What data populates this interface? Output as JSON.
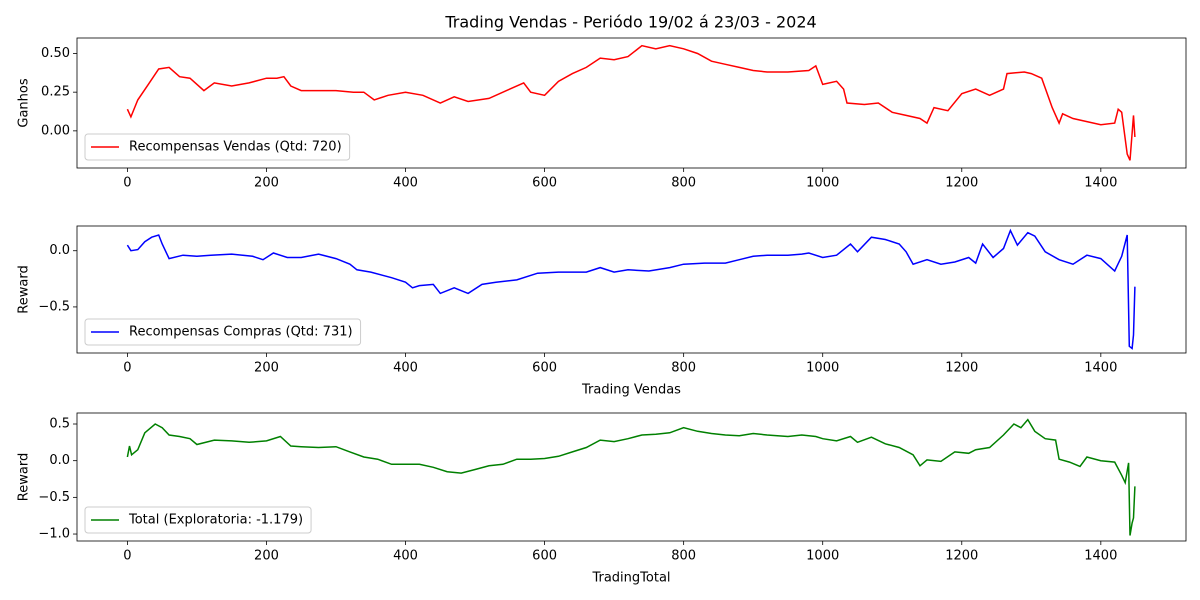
{
  "chart_data": [
    {
      "type": "line",
      "title": "Trading Vendas - Periódo 19/02 á 23/03 - 2024",
      "ylabel": "Ganhos",
      "legend": "lower left",
      "xlim": [
        -72.5,
        1522.5
      ],
      "ylim": [
        -0.24,
        0.6
      ],
      "xticks": [
        0,
        200,
        400,
        600,
        800,
        1000,
        1200,
        1400
      ],
      "yticks": [
        {
          "value": 0,
          "label": "0.00"
        },
        {
          "value": 0.25,
          "label": "0.25"
        },
        {
          "value": 0.5,
          "label": "0.50"
        }
      ],
      "x": [
        0,
        5,
        15,
        30,
        45,
        60,
        75,
        90,
        110,
        125,
        150,
        175,
        200,
        215,
        225,
        235,
        250,
        275,
        300,
        325,
        340,
        355,
        375,
        400,
        425,
        450,
        470,
        490,
        520,
        550,
        570,
        580,
        600,
        620,
        640,
        660,
        680,
        700,
        720,
        740,
        760,
        780,
        800,
        820,
        840,
        860,
        880,
        900,
        920,
        950,
        980,
        990,
        1000,
        1020,
        1030,
        1035,
        1060,
        1080,
        1100,
        1120,
        1140,
        1150,
        1160,
        1180,
        1200,
        1220,
        1240,
        1260,
        1265,
        1290,
        1300,
        1315,
        1330,
        1340,
        1345,
        1360,
        1380,
        1400,
        1420,
        1425,
        1430,
        1438,
        1442,
        1447,
        1449
      ],
      "series": [
        {
          "name": "Recompensas Vendas (Qtd: 720)",
          "color": "#ff0000",
          "values": [
            0.14,
            0.09,
            0.2,
            0.3,
            0.4,
            0.41,
            0.35,
            0.34,
            0.26,
            0.31,
            0.29,
            0.31,
            0.34,
            0.34,
            0.35,
            0.29,
            0.26,
            0.26,
            0.26,
            0.25,
            0.25,
            0.2,
            0.23,
            0.25,
            0.23,
            0.18,
            0.22,
            0.19,
            0.21,
            0.27,
            0.31,
            0.25,
            0.23,
            0.32,
            0.37,
            0.41,
            0.47,
            0.46,
            0.48,
            0.55,
            0.53,
            0.55,
            0.53,
            0.5,
            0.45,
            0.43,
            0.41,
            0.39,
            0.38,
            0.38,
            0.39,
            0.42,
            0.3,
            0.32,
            0.27,
            0.18,
            0.17,
            0.18,
            0.12,
            0.1,
            0.08,
            0.05,
            0.15,
            0.13,
            0.24,
            0.27,
            0.23,
            0.27,
            0.37,
            0.38,
            0.37,
            0.34,
            0.15,
            0.05,
            0.11,
            0.08,
            0.06,
            0.04,
            0.05,
            0.14,
            0.12,
            -0.15,
            -0.19,
            0.1,
            -0.04
          ]
        }
      ]
    },
    {
      "type": "line",
      "ylabel": "Reward",
      "xlabel": "Trading Vendas",
      "legend": "lower left",
      "xlim": [
        -72.5,
        1522.5
      ],
      "ylim": [
        -0.91,
        0.22
      ],
      "xticks": [
        0,
        200,
        400,
        600,
        800,
        1000,
        1200,
        1400
      ],
      "yticks": [
        {
          "value": -0.5,
          "label": "−0.5"
        },
        {
          "value": 0,
          "label": "0.0"
        }
      ],
      "x": [
        0,
        5,
        15,
        25,
        35,
        45,
        50,
        60,
        80,
        100,
        120,
        150,
        180,
        195,
        210,
        230,
        250,
        275,
        300,
        320,
        330,
        350,
        380,
        400,
        410,
        420,
        440,
        450,
        470,
        490,
        510,
        530,
        560,
        590,
        620,
        640,
        660,
        680,
        700,
        720,
        750,
        780,
        800,
        830,
        860,
        880,
        900,
        920,
        950,
        970,
        980,
        1000,
        1020,
        1040,
        1050,
        1070,
        1090,
        1110,
        1120,
        1130,
        1150,
        1170,
        1190,
        1210,
        1220,
        1230,
        1245,
        1260,
        1270,
        1280,
        1295,
        1305,
        1320,
        1340,
        1360,
        1380,
        1400,
        1420,
        1430,
        1438,
        1441,
        1445,
        1447,
        1449
      ],
      "series": [
        {
          "name": "Recompensas Compras (Qtd: 731)",
          "color": "#0000ff",
          "values": [
            0.05,
            0.0,
            0.01,
            0.08,
            0.12,
            0.14,
            0.06,
            -0.07,
            -0.04,
            -0.05,
            -0.04,
            -0.03,
            -0.05,
            -0.08,
            -0.02,
            -0.06,
            -0.06,
            -0.03,
            -0.07,
            -0.12,
            -0.17,
            -0.19,
            -0.24,
            -0.28,
            -0.33,
            -0.31,
            -0.3,
            -0.38,
            -0.33,
            -0.38,
            -0.3,
            -0.28,
            -0.26,
            -0.2,
            -0.19,
            -0.19,
            -0.19,
            -0.15,
            -0.19,
            -0.17,
            -0.18,
            -0.15,
            -0.12,
            -0.11,
            -0.11,
            -0.08,
            -0.05,
            -0.04,
            -0.04,
            -0.03,
            -0.02,
            -0.06,
            -0.04,
            0.06,
            -0.01,
            0.12,
            0.1,
            0.06,
            -0.01,
            -0.12,
            -0.08,
            -0.12,
            -0.1,
            -0.06,
            -0.11,
            0.06,
            -0.06,
            0.02,
            0.18,
            0.05,
            0.16,
            0.13,
            -0.01,
            -0.08,
            -0.12,
            -0.04,
            -0.07,
            -0.18,
            -0.05,
            0.14,
            -0.85,
            -0.87,
            -0.75,
            -0.32
          ]
        }
      ]
    },
    {
      "type": "line",
      "ylabel": "Reward",
      "xlabel": "TradingTotal",
      "legend": "lower left",
      "xlim": [
        -72.5,
        1522.5
      ],
      "ylim": [
        -1.095,
        0.65
      ],
      "xticks": [
        0,
        200,
        400,
        600,
        800,
        1000,
        1200,
        1400
      ],
      "yticks": [
        {
          "value": -1,
          "label": "−1.0"
        },
        {
          "value": -0.5,
          "label": "−0.5"
        },
        {
          "value": 0,
          "label": "0.0"
        },
        {
          "value": 0.5,
          "label": "0.5"
        }
      ],
      "x": [
        0,
        3,
        6,
        15,
        25,
        40,
        50,
        60,
        75,
        90,
        100,
        125,
        150,
        175,
        200,
        220,
        235,
        250,
        275,
        300,
        320,
        340,
        360,
        380,
        400,
        420,
        440,
        460,
        480,
        500,
        520,
        540,
        560,
        580,
        600,
        620,
        640,
        660,
        680,
        700,
        720,
        740,
        760,
        780,
        800,
        820,
        840,
        860,
        880,
        900,
        920,
        950,
        970,
        990,
        1000,
        1020,
        1040,
        1050,
        1070,
        1090,
        1110,
        1130,
        1140,
        1150,
        1170,
        1190,
        1210,
        1220,
        1240,
        1260,
        1275,
        1285,
        1295,
        1305,
        1320,
        1335,
        1340,
        1355,
        1370,
        1380,
        1400,
        1420,
        1430,
        1435,
        1440,
        1442,
        1445,
        1447,
        1449
      ],
      "series": [
        {
          "name": "Total (Exploratoria: -1.179)",
          "color": "#008000",
          "values": [
            0.05,
            0.2,
            0.08,
            0.15,
            0.38,
            0.5,
            0.45,
            0.35,
            0.33,
            0.3,
            0.22,
            0.28,
            0.27,
            0.25,
            0.27,
            0.33,
            0.2,
            0.19,
            0.18,
            0.19,
            0.12,
            0.05,
            0.02,
            -0.05,
            -0.05,
            -0.05,
            -0.09,
            -0.15,
            -0.17,
            -0.12,
            -0.07,
            -0.05,
            0.02,
            0.02,
            0.03,
            0.06,
            0.12,
            0.18,
            0.28,
            0.26,
            0.3,
            0.35,
            0.36,
            0.38,
            0.45,
            0.4,
            0.37,
            0.35,
            0.34,
            0.37,
            0.35,
            0.33,
            0.35,
            0.33,
            0.3,
            0.27,
            0.33,
            0.25,
            0.32,
            0.23,
            0.18,
            0.08,
            -0.07,
            0.01,
            -0.01,
            0.12,
            0.1,
            0.15,
            0.18,
            0.35,
            0.5,
            0.45,
            0.56,
            0.4,
            0.3,
            0.28,
            0.02,
            -0.02,
            -0.08,
            0.05,
            0.0,
            -0.02,
            -0.2,
            -0.3,
            -0.03,
            -1.02,
            -0.85,
            -0.78,
            -0.35
          ]
        }
      ]
    }
  ]
}
